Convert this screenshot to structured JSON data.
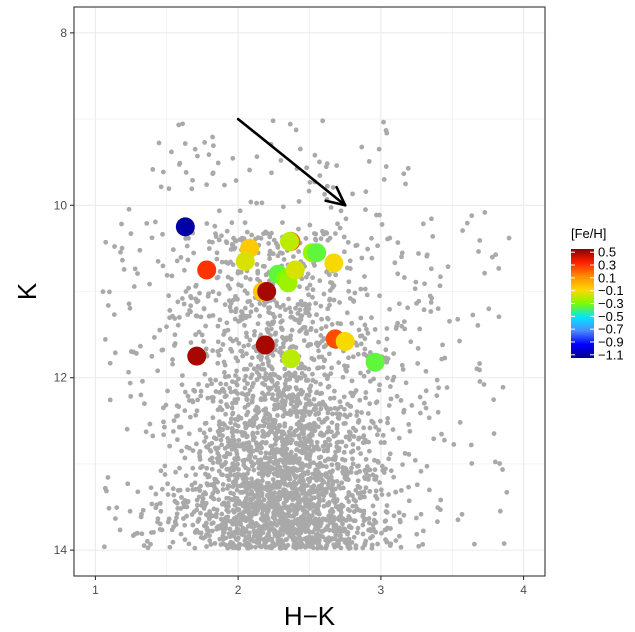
{
  "chart_data": {
    "type": "scatter",
    "xlabel": "H−K",
    "ylabel": "K",
    "xlim": [
      0.85,
      4.15
    ],
    "ylim": [
      14.3,
      7.7
    ],
    "y_reversed": true,
    "grid": true,
    "x_ticks": [
      1,
      2,
      3,
      4
    ],
    "x_tick_labels": [
      "1",
      "2",
      "3",
      "4"
    ],
    "y_ticks": [
      8,
      10,
      12,
      14
    ],
    "y_tick_labels": [
      "8",
      "10",
      "12",
      "14"
    ],
    "background": {
      "color": "#a9a9a9",
      "count": 3200,
      "description_center": [
        2.3,
        13.0
      ]
    },
    "arrow": {
      "x0": 2.0,
      "y0": 9.0,
      "x1": 2.75,
      "y1": 10.0
    },
    "legend": {
      "title": "[Fe/H]",
      "placement": "right",
      "min": -1.15,
      "max": 0.55,
      "ticks": [
        0.5,
        0.3,
        0.1,
        -0.1,
        -0.3,
        -0.5,
        -0.7,
        -0.9,
        -1.1
      ],
      "tick_labels": [
        "0.5",
        "0.3",
        "0.1",
        "−0.1",
        "−0.3",
        "−0.5",
        "−0.7",
        "−0.9",
        "−1.1"
      ],
      "colors": [
        "#00008b",
        "#0000ff",
        "#4b8bff",
        "#00e5ff",
        "#7cfc00",
        "#ffd700",
        "#ff8c00",
        "#ff2000",
        "#8b0000"
      ]
    },
    "points": [
      {
        "x": 1.63,
        "y": 10.25,
        "feh": -1.1
      },
      {
        "x": 1.78,
        "y": 10.75,
        "feh": 0.3
      },
      {
        "x": 2.08,
        "y": 10.5,
        "feh": -0.05
      },
      {
        "x": 2.05,
        "y": 10.65,
        "feh": -0.15
      },
      {
        "x": 2.17,
        "y": 11.0,
        "feh": -0.05
      },
      {
        "x": 2.2,
        "y": 11.0,
        "feh": 0.5
      },
      {
        "x": 2.28,
        "y": 10.8,
        "feh": -0.35
      },
      {
        "x": 2.33,
        "y": 10.85,
        "feh": -0.3
      },
      {
        "x": 2.35,
        "y": 10.9,
        "feh": -0.25
      },
      {
        "x": 2.37,
        "y": 10.42,
        "feh": 0.2
      },
      {
        "x": 2.36,
        "y": 10.42,
        "feh": -0.2
      },
      {
        "x": 2.4,
        "y": 10.75,
        "feh": -0.15
      },
      {
        "x": 2.52,
        "y": 10.55,
        "feh": -0.25
      },
      {
        "x": 2.55,
        "y": 10.55,
        "feh": -0.35
      },
      {
        "x": 2.67,
        "y": 10.67,
        "feh": -0.1
      },
      {
        "x": 1.71,
        "y": 11.75,
        "feh": 0.5
      },
      {
        "x": 2.19,
        "y": 11.62,
        "feh": 0.5
      },
      {
        "x": 2.37,
        "y": 11.78,
        "feh": -0.2
      },
      {
        "x": 2.68,
        "y": 11.55,
        "feh": 0.25
      },
      {
        "x": 2.75,
        "y": 11.58,
        "feh": -0.1
      },
      {
        "x": 2.96,
        "y": 11.82,
        "feh": -0.35
      }
    ]
  }
}
